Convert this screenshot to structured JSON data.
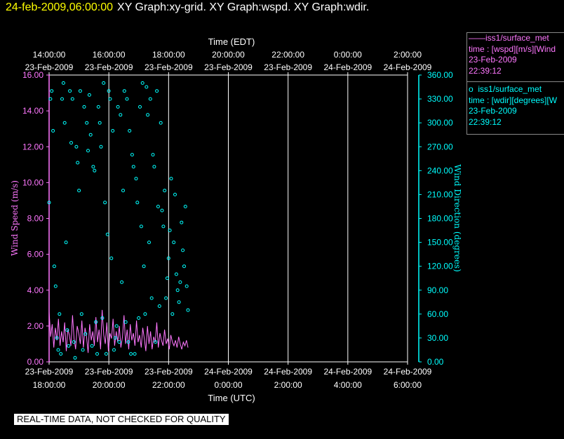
{
  "title": {
    "date": "24-feb-2009,06:00:00",
    "graphs": "XY Graph:xy-grid.  XY Graph:wspd.  XY Graph:wdir."
  },
  "legend": {
    "wspd": {
      "marker": "——",
      "name": "iss1/surface_met",
      "desc": "time : [wspd][m/s][Wind",
      "date": "23-Feb-2009",
      "time": "22:39:12"
    },
    "wdir": {
      "marker": "o",
      "name": "iss1/surface_met",
      "desc": "time : [wdir][degrees][W",
      "date": "23-Feb-2009",
      "time": "22:39:12"
    }
  },
  "footer_note": "REAL-TIME DATA, NOT CHECKED FOR QUALITY",
  "colors": {
    "background": "#000000",
    "wspd_series": "#ff77ff",
    "wdir_series": "#00ffff",
    "title_date": "#ffff00",
    "grid": "#ffffff"
  },
  "chart_data": {
    "type": "line",
    "top_axis": {
      "title": "Time (EDT)",
      "ticks": [
        {
          "time": "14:00:00",
          "date": "23-Feb-2009"
        },
        {
          "time": "16:00:00",
          "date": "23-Feb-2009"
        },
        {
          "time": "18:00:00",
          "date": "23-Feb-2009"
        },
        {
          "time": "20:00:00",
          "date": "23-Feb-2009"
        },
        {
          "time": "22:00:00",
          "date": "23-Feb-2009"
        },
        {
          "time": "0:00:00",
          "date": "24-Feb-2009"
        },
        {
          "time": "2:00:00",
          "date": "24-Feb-2009"
        }
      ]
    },
    "bottom_axis": {
      "title": "Time (UTC)",
      "ticks": [
        {
          "date": "23-Feb-2009",
          "time": "18:00:00"
        },
        {
          "date": "23-Feb-2009",
          "time": "20:00:00"
        },
        {
          "date": "23-Feb-2009",
          "time": "22:00:00"
        },
        {
          "date": "24-Feb-2009",
          "time": "0:00:00"
        },
        {
          "date": "24-Feb-2009",
          "time": "2:00:00"
        },
        {
          "date": "24-Feb-2009",
          "time": "4:00:00"
        },
        {
          "date": "24-Feb-2009",
          "time": "6:00:00"
        }
      ],
      "xlim": [
        "2009-02-23 18:00 UTC",
        "2009-02-24 06:00 UTC"
      ]
    },
    "left_axis": {
      "title": "Wind Speed (m/s)",
      "ylim": [
        0,
        16
      ],
      "ticks": [
        "0.00",
        "2.00",
        "4.00",
        "6.00",
        "8.00",
        "10.00",
        "12.00",
        "14.00",
        "16.00"
      ]
    },
    "right_axis": {
      "title": "Wind Direction (degrees)",
      "ylim": [
        0,
        360
      ],
      "ticks": [
        "0.00",
        "30.00",
        "60.00",
        "90.00",
        "120.00",
        "150.00",
        "180.00",
        "210.00",
        "240.00",
        "270.00",
        "300.00",
        "330.00",
        "360.00"
      ]
    },
    "vertical_grid": true,
    "series": [
      {
        "key": "wspd",
        "axis": "left",
        "style": "line",
        "x_start": "2009-02-23 18:00 UTC",
        "x_end": "2009-02-23 22:39 UTC",
        "values": [
          2.8,
          1.4,
          2.1,
          0.8,
          1.9,
          1.2,
          2.4,
          0.9,
          1.7,
          1.1,
          2.2,
          0.6,
          1.8,
          1.5,
          0.9,
          2.6,
          1.3,
          0.7,
          2.0,
          1.6,
          1.0,
          2.3,
          0.8,
          1.9,
          1.4,
          0.5,
          2.1,
          1.2,
          1.7,
          0.9,
          2.5,
          1.1,
          1.8,
          0.7,
          2.9,
          1.5,
          1.0,
          2.2,
          0.6,
          1.6,
          1.3,
          2.4,
          0.9,
          1.7,
          1.1,
          2.0,
          0.8,
          1.4,
          2.6,
          1.0,
          1.8,
          0.7,
          2.1,
          1.2,
          1.6,
          0.9,
          2.3,
          1.1,
          1.5,
          0.8,
          1.9,
          1.3,
          0.6,
          2.0,
          1.0,
          1.7,
          0.7,
          1.4,
          1.1,
          2.2,
          0.8,
          1.6,
          1.2,
          0.9,
          1.8,
          1.0,
          1.3,
          0.7,
          1.5,
          1.1,
          0.9,
          1.2,
          0.8,
          1.4,
          1.0,
          0.7,
          1.1,
          0.9,
          1.2,
          0.8
        ]
      },
      {
        "key": "wdir",
        "axis": "right",
        "style": "scatter",
        "x_start": "2009-02-23 18:00 UTC",
        "x_end": "2009-02-23 22:39 UTC",
        "values": [
          200,
          330,
          340,
          290,
          120,
          95,
          30,
          15,
          60,
          10,
          330,
          350,
          300,
          150,
          40,
          20,
          340,
          275,
          330,
          25,
          5,
          270,
          250,
          215,
          340,
          60,
          15,
          320,
          35,
          300,
          265,
          335,
          285,
          20,
          245,
          240,
          50,
          10,
          320,
          300,
          270,
          55,
          350,
          200,
          10,
          160,
          340,
          330,
          130,
          290,
          15,
          30,
          45,
          320,
          25,
          310,
          100,
          215,
          340,
          50,
          330,
          25,
          290,
          10,
          260,
          245,
          10,
          230,
          200,
          55,
          320,
          170,
          350,
          120,
          60,
          345,
          310,
          150,
          330,
          80,
          260,
          245,
          25,
          340,
          195,
          70,
          300,
          190,
          170,
          215,
          80,
          105,
          130,
          165,
          230,
          60,
          150,
          210,
          110,
          90,
          75,
          100,
          175,
          140,
          120,
          195,
          95,
          65
        ]
      }
    ]
  }
}
